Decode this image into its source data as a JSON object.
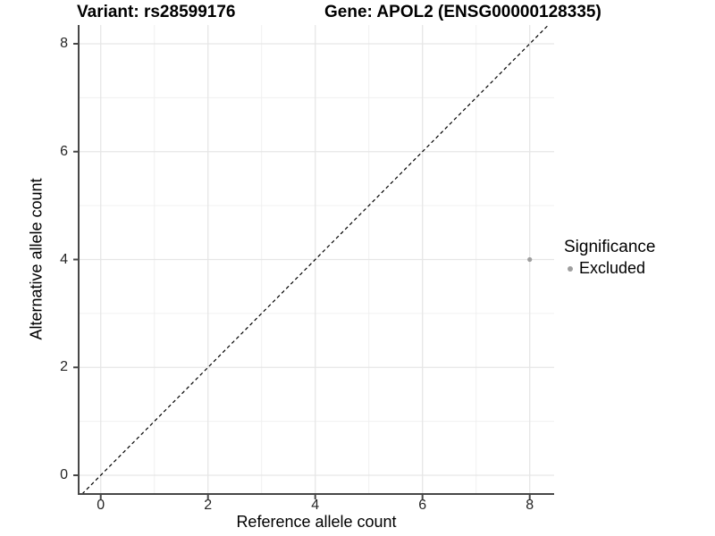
{
  "header": {
    "variant_title": "Variant: rs28599176",
    "gene_title": "Gene: APOL2 (ENSG00000128335)"
  },
  "legend": {
    "title": "Significance",
    "items": [
      {
        "label": "Excluded",
        "color": "#9e9e9e"
      }
    ]
  },
  "chart_data": {
    "type": "scatter",
    "title_left": "Variant: rs28599176",
    "title_right": "Gene: APOL2 (ENSG00000128335)",
    "xlabel": "Reference allele count",
    "ylabel": "Alternative allele count",
    "xlim": [
      -0.412,
      8.455
    ],
    "ylim": [
      -0.348,
      8.348
    ],
    "x_major_ticks": [
      0,
      2,
      4,
      6,
      8
    ],
    "y_major_ticks": [
      0,
      2,
      4,
      6,
      8
    ],
    "x_minor_ticks": [
      1,
      3,
      5,
      7
    ],
    "y_minor_ticks": [
      1,
      3,
      5,
      7
    ],
    "grid": true,
    "legend_position": "right",
    "series": [
      {
        "name": "Excluded",
        "color": "#9e9e9e",
        "points": [
          {
            "x": 8,
            "y": 4
          }
        ]
      }
    ],
    "reference_line": {
      "type": "identity",
      "slope": 1,
      "intercept": 0,
      "style": "dashed",
      "color": "#000000"
    }
  },
  "colors": {
    "background": "#ffffff",
    "grid_major": "#e6e6e6",
    "grid_minor": "#f0f0f0",
    "axis_line": "#474747",
    "tick_label": "#262626",
    "point": "#9e9e9e"
  }
}
